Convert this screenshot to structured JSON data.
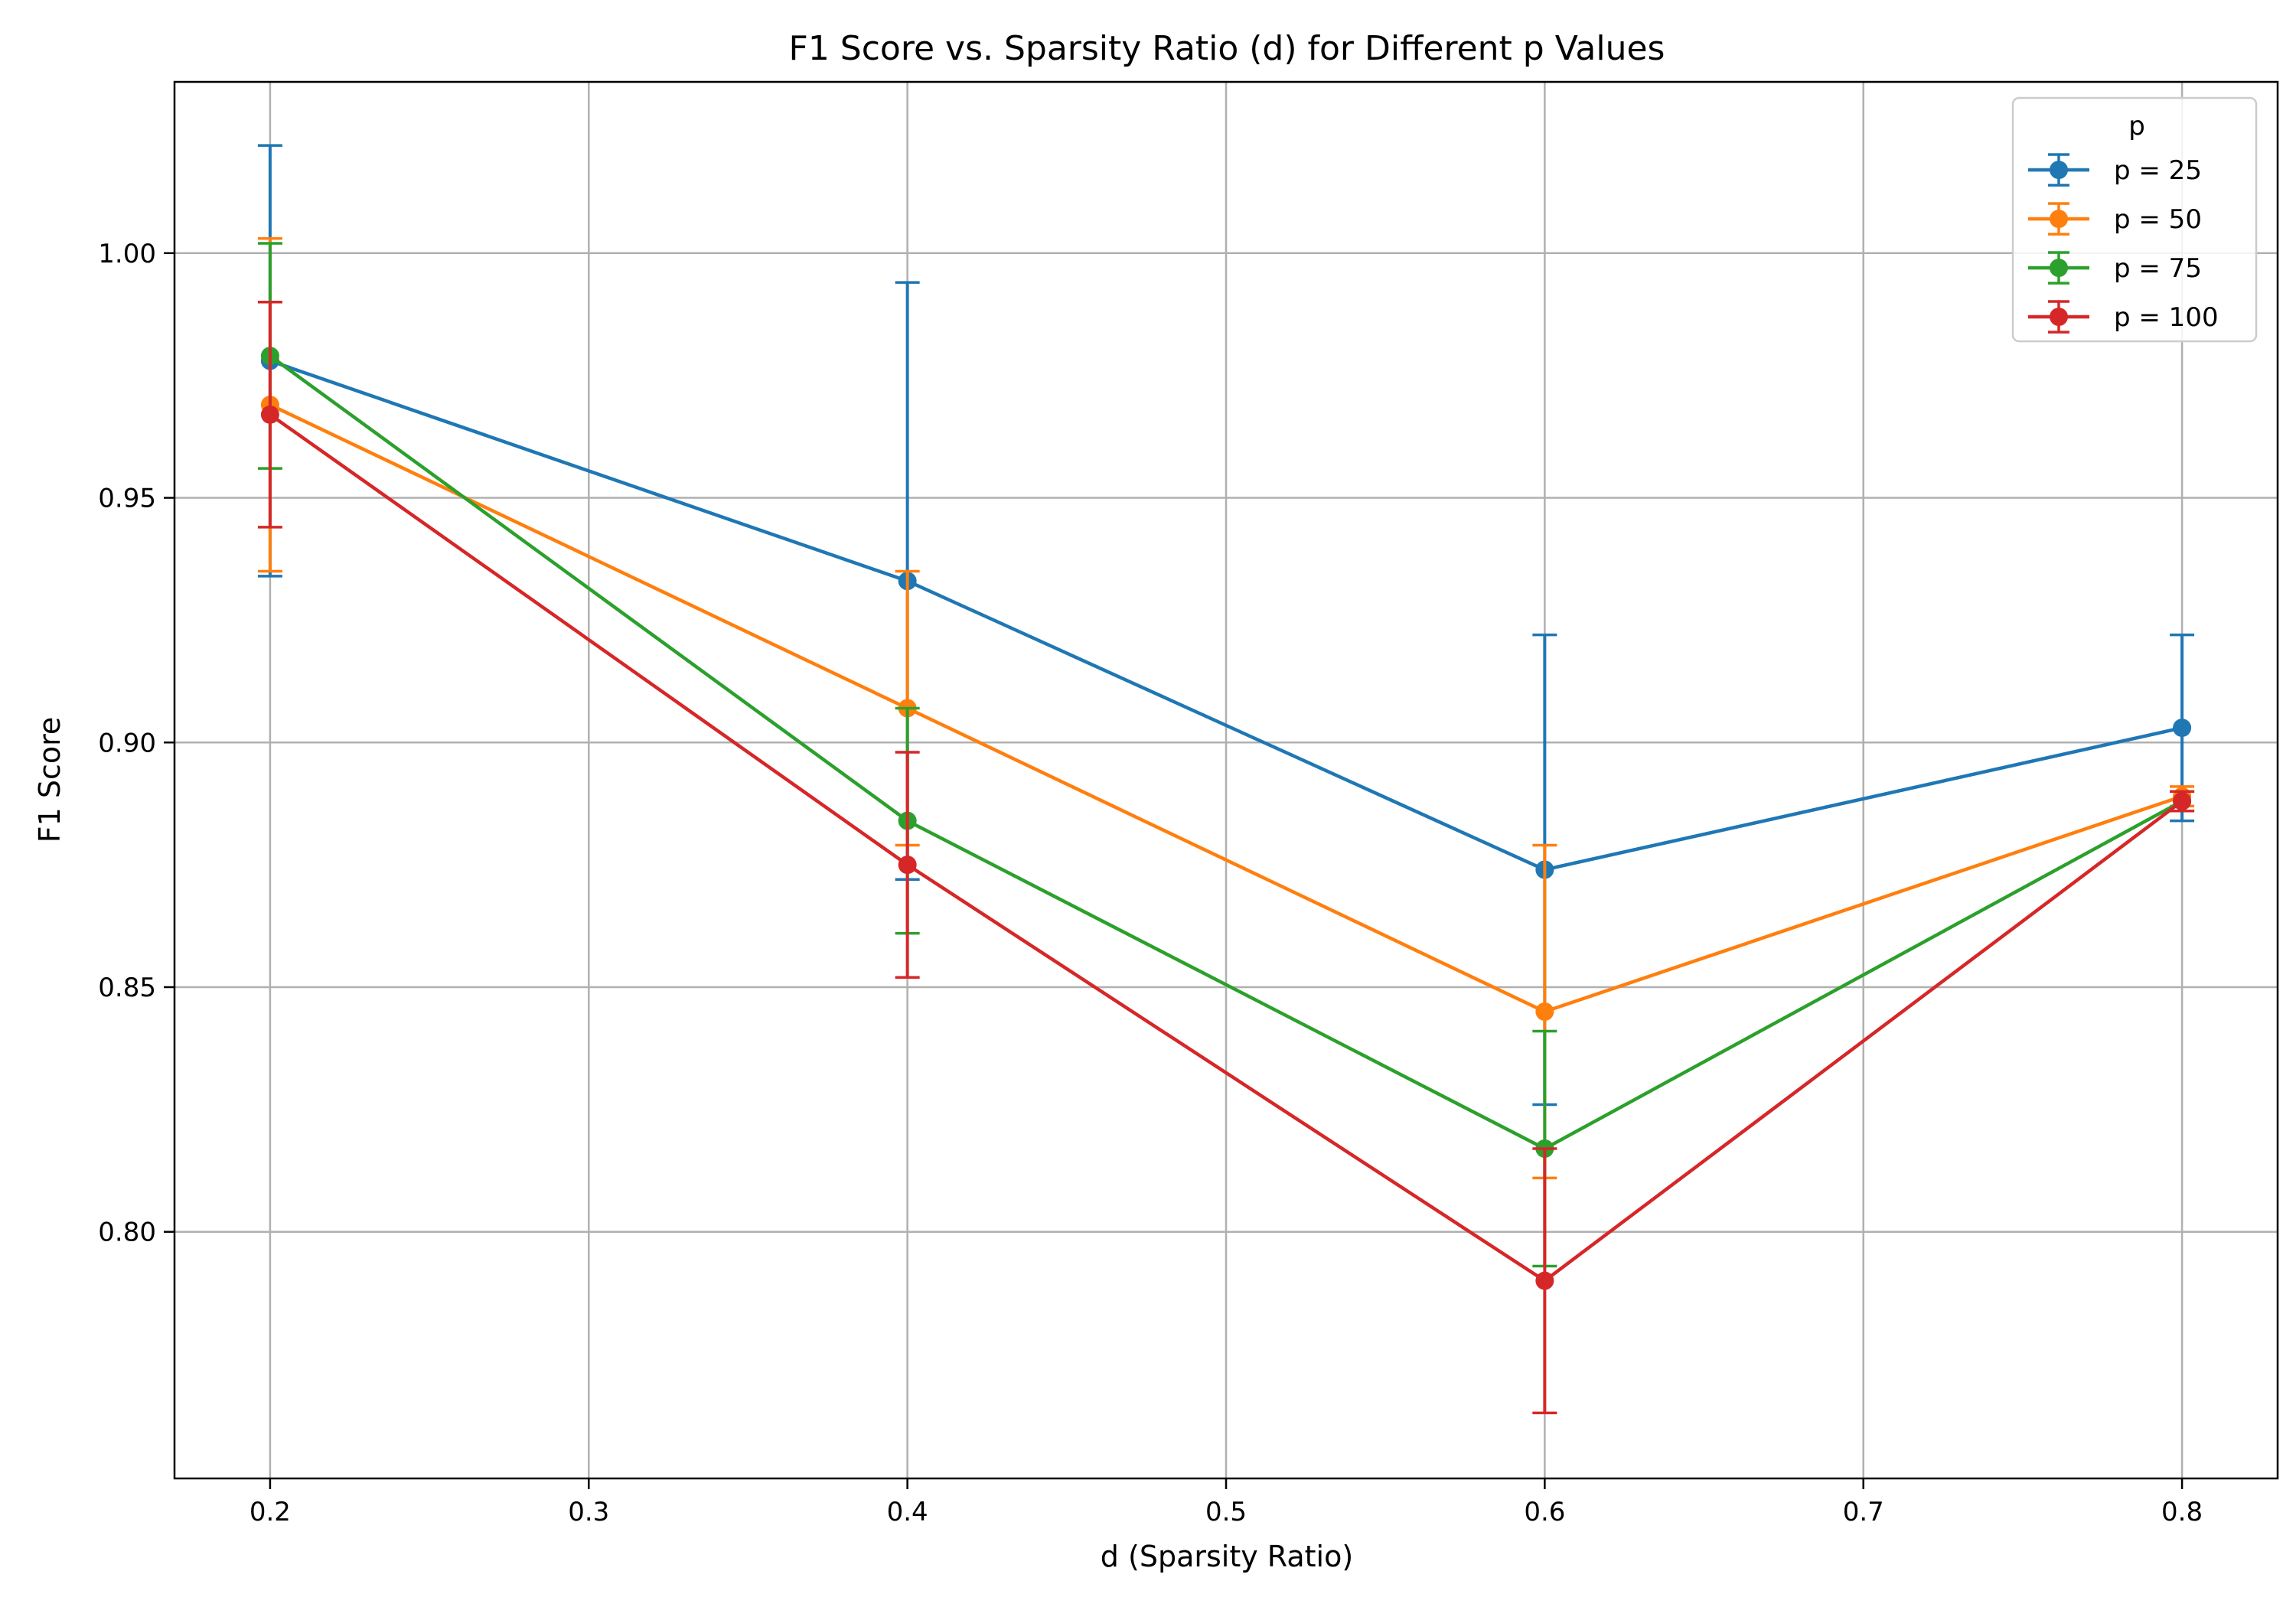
{
  "chart_data": {
    "type": "line",
    "title": "F1 Score vs. Sparsity Ratio (d) for Different p Values",
    "xlabel": "d (Sparsity Ratio)",
    "ylabel": "F1 Score",
    "xlim": [
      0.17,
      0.83
    ],
    "ylim": [
      0.7496,
      1.035
    ],
    "xticks": [
      0.2,
      0.3,
      0.4,
      0.5,
      0.6,
      0.7,
      0.8
    ],
    "xtick_labels": [
      "0.2",
      "0.3",
      "0.4",
      "0.5",
      "0.6",
      "0.7",
      "0.8"
    ],
    "yticks": [
      0.8,
      0.85,
      0.9,
      0.95,
      1.0
    ],
    "ytick_labels": [
      "0.80",
      "0.85",
      "0.90",
      "0.95",
      "1.00"
    ],
    "grid": true,
    "legend": {
      "title": "p",
      "placement": "top-right"
    },
    "x": [
      0.2,
      0.4,
      0.6,
      0.8
    ],
    "series": [
      {
        "name": "p = 25",
        "color": "#1f77b4",
        "values": [
          0.978,
          0.933,
          0.874,
          0.903
        ],
        "errors": [
          0.044,
          0.061,
          0.048,
          0.019
        ]
      },
      {
        "name": "p = 50",
        "color": "#ff7f0e",
        "values": [
          0.969,
          0.907,
          0.845,
          0.889
        ],
        "errors": [
          0.034,
          0.028,
          0.034,
          0.002
        ]
      },
      {
        "name": "p = 75",
        "color": "#2ca02c",
        "values": [
          0.979,
          0.884,
          0.817,
          0.888
        ],
        "errors": [
          0.023,
          0.023,
          0.024,
          0.002
        ]
      },
      {
        "name": "p = 100",
        "color": "#d62728",
        "values": [
          0.967,
          0.875,
          0.79,
          0.888
        ],
        "errors": [
          0.023,
          0.023,
          0.027,
          0.002
        ]
      }
    ]
  }
}
